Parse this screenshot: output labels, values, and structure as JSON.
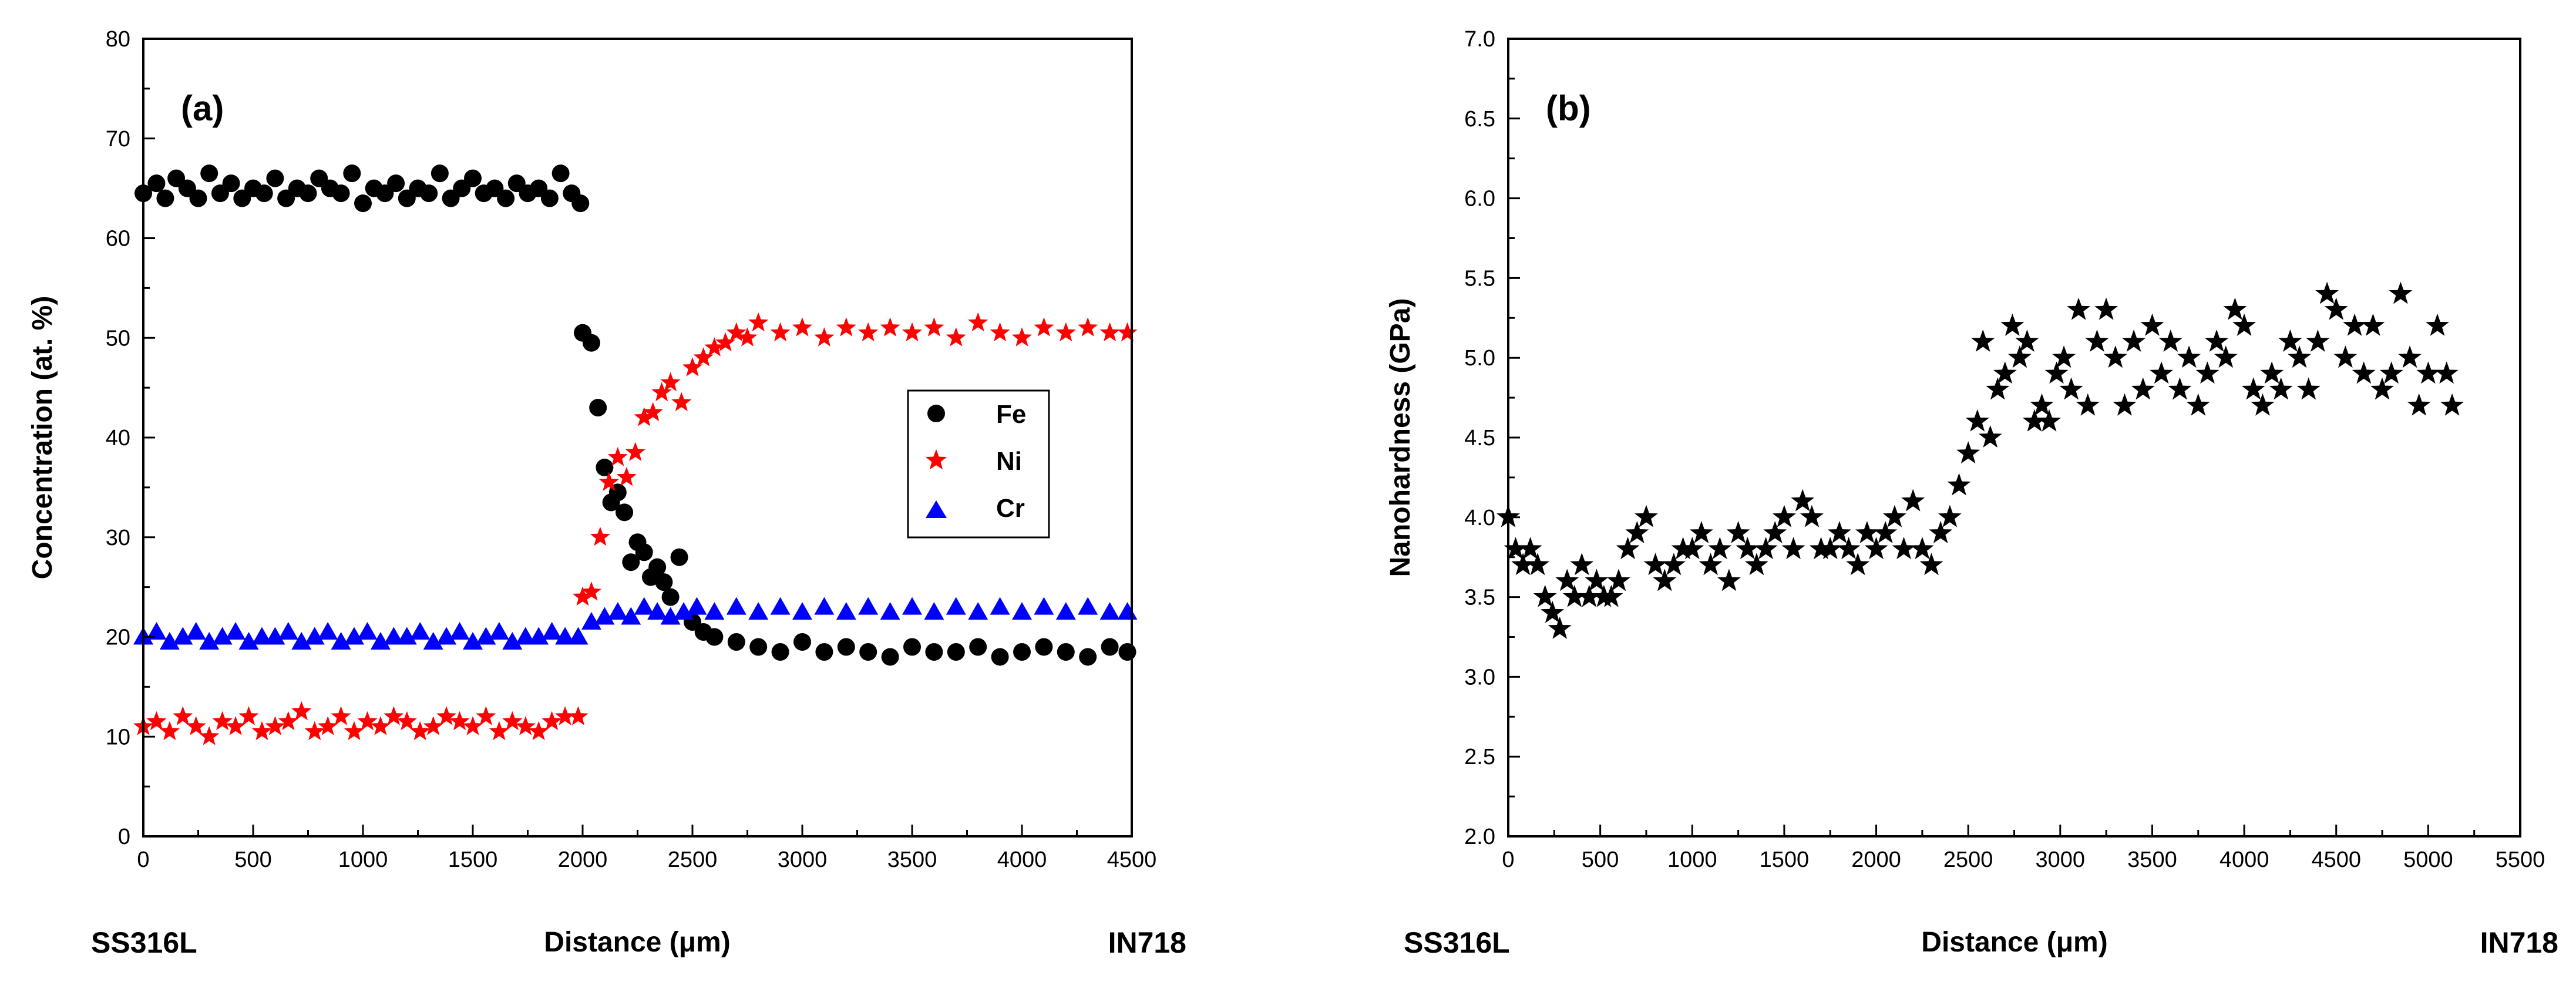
{
  "chart_data": [
    {
      "type": "scatter",
      "panel_label": "(a)",
      "xlabel": "Distance (μm)",
      "ylabel": "Concentration (at. %)",
      "xlim": [
        0,
        4500
      ],
      "ylim": [
        0,
        80
      ],
      "x_ticks": [
        0,
        500,
        1000,
        1500,
        2000,
        2500,
        3000,
        3500,
        4000,
        4500
      ],
      "y_ticks": [
        0,
        10,
        20,
        30,
        40,
        50,
        60,
        70,
        80
      ],
      "left_label": "SS316L",
      "right_label": "IN718",
      "legend": [
        "Fe",
        "Ni",
        "Cr"
      ],
      "legend_position": "center-right",
      "series": [
        {
          "name": "Fe",
          "marker": "circle",
          "color": "#000000",
          "x": [
            0,
            60,
            100,
            150,
            200,
            250,
            300,
            350,
            400,
            450,
            500,
            550,
            600,
            650,
            700,
            750,
            800,
            850,
            900,
            950,
            1000,
            1050,
            1100,
            1150,
            1200,
            1250,
            1300,
            1350,
            1400,
            1450,
            1500,
            1550,
            1600,
            1650,
            1700,
            1750,
            1800,
            1850,
            1900,
            1950,
            1990,
            2000,
            2040,
            2070,
            2100,
            2130,
            2160,
            2190,
            2220,
            2250,
            2280,
            2310,
            2340,
            2370,
            2400,
            2440,
            2500,
            2550,
            2600,
            2700,
            2800,
            2900,
            3000,
            3100,
            3200,
            3300,
            3400,
            3500,
            3600,
            3700,
            3800,
            3900,
            4000,
            4100,
            4200,
            4300,
            4400,
            4480
          ],
          "y": [
            64.5,
            65.5,
            64.0,
            66.0,
            65.0,
            64.0,
            66.5,
            64.5,
            65.5,
            64.0,
            65.0,
            64.5,
            66.0,
            64.0,
            65.0,
            64.5,
            66.0,
            65.0,
            64.5,
            66.5,
            63.5,
            65.0,
            64.5,
            65.5,
            64.0,
            65.0,
            64.5,
            66.5,
            64.0,
            65.0,
            66.0,
            64.5,
            65.0,
            64.0,
            65.5,
            64.5,
            65.0,
            64.0,
            66.5,
            64.5,
            63.5,
            50.5,
            49.5,
            43.0,
            37.0,
            33.5,
            34.5,
            32.5,
            27.5,
            29.5,
            28.5,
            26.0,
            27.0,
            25.5,
            24.0,
            28.0,
            21.5,
            20.5,
            20.0,
            19.5,
            19.0,
            18.5,
            19.5,
            18.5,
            19.0,
            18.5,
            18.0,
            19.0,
            18.5,
            18.5,
            19.0,
            18.0,
            18.5,
            19.0,
            18.5,
            18.0,
            19.0,
            18.5
          ]
        },
        {
          "name": "Ni",
          "marker": "star",
          "color": "#ff0000",
          "x": [
            0,
            60,
            120,
            180,
            240,
            300,
            360,
            420,
            480,
            540,
            600,
            660,
            720,
            780,
            840,
            900,
            960,
            1020,
            1080,
            1140,
            1200,
            1260,
            1320,
            1380,
            1440,
            1500,
            1560,
            1620,
            1680,
            1740,
            1800,
            1860,
            1920,
            1980,
            2000,
            2040,
            2080,
            2120,
            2160,
            2200,
            2240,
            2280,
            2320,
            2360,
            2400,
            2450,
            2500,
            2550,
            2600,
            2650,
            2700,
            2750,
            2800,
            2900,
            3000,
            3100,
            3200,
            3300,
            3400,
            3500,
            3600,
            3700,
            3800,
            3900,
            4000,
            4100,
            4200,
            4300,
            4400,
            4480
          ],
          "y": [
            11.0,
            11.5,
            10.5,
            12.0,
            11.0,
            10.0,
            11.5,
            11.0,
            12.0,
            10.5,
            11.0,
            11.5,
            12.5,
            10.5,
            11.0,
            12.0,
            10.5,
            11.5,
            11.0,
            12.0,
            11.5,
            10.5,
            11.0,
            12.0,
            11.5,
            11.0,
            12.0,
            10.5,
            11.5,
            11.0,
            10.5,
            11.5,
            12.0,
            12.0,
            24.0,
            24.5,
            30.0,
            35.5,
            38.0,
            36.0,
            38.5,
            42.0,
            42.5,
            44.5,
            45.5,
            43.5,
            47.0,
            48.0,
            49.0,
            49.5,
            50.5,
            50.0,
            51.5,
            50.5,
            51.0,
            50.0,
            51.0,
            50.5,
            51.0,
            50.5,
            51.0,
            50.0,
            51.5,
            50.5,
            50.0,
            51.0,
            50.5,
            51.0,
            50.5,
            50.5
          ]
        },
        {
          "name": "Cr",
          "marker": "triangle",
          "color": "#0000ff",
          "x": [
            0,
            60,
            120,
            180,
            240,
            300,
            360,
            420,
            480,
            540,
            600,
            660,
            720,
            780,
            840,
            900,
            960,
            1020,
            1080,
            1140,
            1200,
            1260,
            1320,
            1380,
            1440,
            1500,
            1560,
            1620,
            1680,
            1740,
            1800,
            1860,
            1920,
            1980,
            2040,
            2100,
            2160,
            2220,
            2280,
            2340,
            2400,
            2460,
            2520,
            2600,
            2700,
            2800,
            2900,
            3000,
            3100,
            3200,
            3300,
            3400,
            3500,
            3600,
            3700,
            3800,
            3900,
            4000,
            4100,
            4200,
            4300,
            4400,
            4480
          ],
          "y": [
            20.0,
            20.5,
            19.5,
            20.0,
            20.5,
            19.5,
            20.0,
            20.5,
            19.5,
            20.0,
            20.0,
            20.5,
            19.5,
            20.0,
            20.5,
            19.5,
            20.0,
            20.5,
            19.5,
            20.0,
            20.0,
            20.5,
            19.5,
            20.0,
            20.5,
            19.5,
            20.0,
            20.5,
            19.5,
            20.0,
            20.0,
            20.5,
            20.0,
            20.0,
            21.5,
            22.0,
            22.5,
            22.0,
            23.0,
            22.5,
            22.0,
            22.5,
            23.0,
            22.5,
            23.0,
            22.5,
            23.0,
            22.5,
            23.0,
            22.5,
            23.0,
            22.5,
            23.0,
            22.5,
            23.0,
            22.5,
            23.0,
            22.5,
            23.0,
            22.5,
            23.0,
            22.5,
            22.5
          ]
        }
      ]
    },
    {
      "type": "scatter",
      "panel_label": "(b)",
      "xlabel": "Distance (μm)",
      "ylabel": "Nanohardness (GPa)",
      "xlim": [
        0,
        5500
      ],
      "ylim": [
        2.0,
        7.0
      ],
      "x_ticks": [
        0,
        500,
        1000,
        1500,
        2000,
        2500,
        3000,
        3500,
        4000,
        4500,
        5000,
        5500
      ],
      "y_ticks": [
        "2.0",
        "2.5",
        "3.0",
        "3.5",
        "4.0",
        "4.5",
        "5.0",
        "5.5",
        "6.0",
        "6.5",
        "7.0"
      ],
      "left_label": "SS316L",
      "right_label": "IN718",
      "series": [
        {
          "name": "Nanohardness",
          "marker": "star",
          "color": "#000000",
          "x": [
            0,
            40,
            80,
            120,
            160,
            200,
            240,
            280,
            320,
            360,
            400,
            440,
            480,
            520,
            560,
            600,
            650,
            700,
            750,
            800,
            850,
            900,
            950,
            1000,
            1050,
            1100,
            1150,
            1200,
            1250,
            1300,
            1350,
            1400,
            1450,
            1500,
            1550,
            1600,
            1650,
            1700,
            1750,
            1800,
            1850,
            1900,
            1950,
            2000,
            2050,
            2100,
            2150,
            2200,
            2250,
            2300,
            2350,
            2400,
            2450,
            2500,
            2550,
            2580,
            2620,
            2660,
            2700,
            2740,
            2780,
            2820,
            2860,
            2900,
            2940,
            2980,
            3020,
            3060,
            3100,
            3150,
            3200,
            3250,
            3300,
            3350,
            3400,
            3450,
            3500,
            3550,
            3600,
            3650,
            3700,
            3750,
            3800,
            3850,
            3900,
            3950,
            4000,
            4050,
            4100,
            4150,
            4200,
            4250,
            4300,
            4350,
            4400,
            4450,
            4500,
            4550,
            4600,
            4650,
            4700,
            4750,
            4800,
            4850,
            4900,
            4950,
            5000,
            5050,
            5100,
            5130
          ],
          "y": [
            4.0,
            3.8,
            3.7,
            3.8,
            3.7,
            3.5,
            3.4,
            3.3,
            3.6,
            3.5,
            3.7,
            3.5,
            3.6,
            3.5,
            3.5,
            3.6,
            3.8,
            3.9,
            4.0,
            3.7,
            3.6,
            3.7,
            3.8,
            3.8,
            3.9,
            3.7,
            3.8,
            3.6,
            3.9,
            3.8,
            3.7,
            3.8,
            3.9,
            4.0,
            3.8,
            4.1,
            4.0,
            3.8,
            3.8,
            3.9,
            3.8,
            3.7,
            3.9,
            3.8,
            3.9,
            4.0,
            3.8,
            4.1,
            3.8,
            3.7,
            3.9,
            4.0,
            4.2,
            4.4,
            4.6,
            5.1,
            4.5,
            4.8,
            4.9,
            5.2,
            5.0,
            5.1,
            4.6,
            4.7,
            4.6,
            4.9,
            5.0,
            4.8,
            5.3,
            4.7,
            5.1,
            5.3,
            5.0,
            4.7,
            5.1,
            4.8,
            5.2,
            4.9,
            5.1,
            4.8,
            5.0,
            4.7,
            4.9,
            5.1,
            5.0,
            5.3,
            5.2,
            4.8,
            4.7,
            4.9,
            4.8,
            5.1,
            5.0,
            4.8,
            5.1,
            5.4,
            5.3,
            5.0,
            5.2,
            4.9,
            5.2,
            4.8,
            4.9,
            5.4,
            5.0,
            4.7,
            4.9,
            5.2,
            4.9,
            4.7
          ]
        }
      ]
    }
  ]
}
